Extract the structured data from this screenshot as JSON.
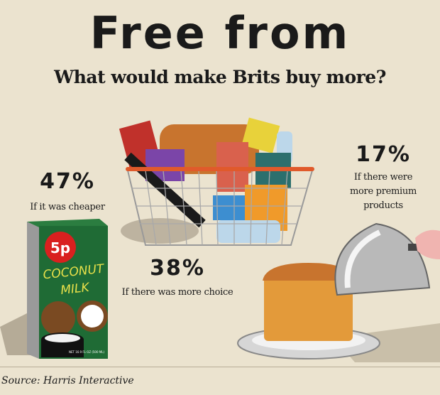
{
  "title": "Free from",
  "subtitle": "What would make Brits buy more?",
  "stats": [
    {
      "value": "47%",
      "caption": "If it was cheaper"
    },
    {
      "value": "38%",
      "caption": "If there was more choice"
    },
    {
      "value": "17%",
      "caption_lines": [
        "If there were",
        "more premium",
        "products"
      ]
    }
  ],
  "illustrations": {
    "carton": {
      "price_badge": "5p",
      "label_line1": "COCONUT",
      "label_line2": "MILK",
      "small_print": "NET 16.9 FL OZ (500 ML)"
    },
    "basket": "shopping-basket",
    "cloche": "bread-under-cloche"
  },
  "source": "Source: Harris Interactive",
  "colors": {
    "background": "#ebe3cf",
    "carton_green": "#1f6b35",
    "badge_red": "#d9201f",
    "label_yellow": "#e8e04a"
  }
}
